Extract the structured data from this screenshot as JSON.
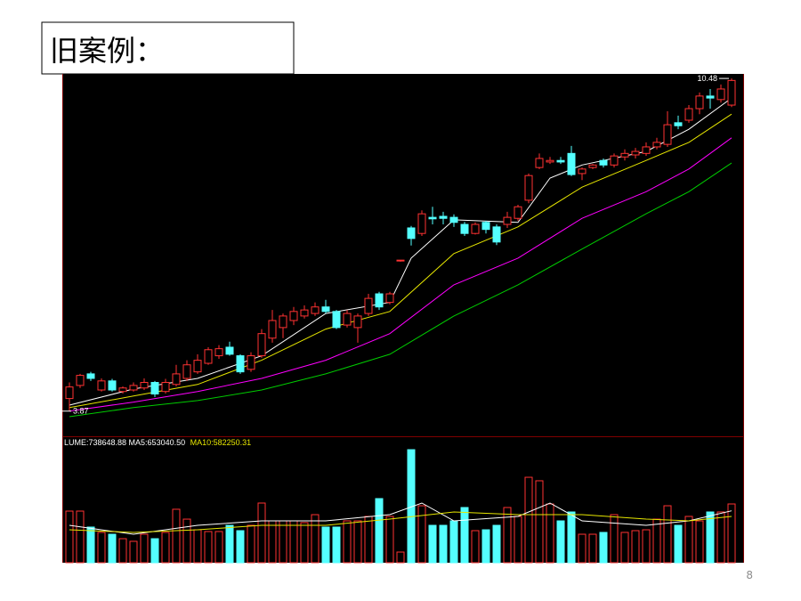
{
  "title": "旧案例：",
  "page_number": "8",
  "chart_data": [
    {
      "type": "candlestick",
      "high_label": "10.48",
      "low_label": "3.87",
      "up_color": "#ff3232",
      "down_color": "#54ffff",
      "ylim": [
        3.37,
        10.57
      ],
      "open": [
        4.12,
        4.38,
        4.61,
        4.29,
        4.47,
        4.26,
        4.29,
        4.33,
        4.44,
        4.26,
        4.4,
        4.52,
        4.65,
        4.82,
        4.97,
        5.14,
        4.97,
        4.7,
        4.97,
        5.32,
        5.53,
        5.67,
        5.76,
        5.81,
        5.94,
        5.85,
        5.58,
        5.53,
        5.81,
        6.2,
        6.03,
        6.86,
        7.51,
        7.4,
        7.72,
        7.74,
        7.72,
        7.58,
        7.4,
        7.62,
        7.53,
        7.58,
        7.7,
        8.06,
        8.71,
        8.82,
        8.85,
        8.99,
        8.59,
        8.71,
        8.85,
        8.76,
        8.92,
        8.96,
        8.99,
        9.12,
        9.17,
        9.6,
        9.65,
        9.88,
        10.13,
        10.06,
        9.95
      ],
      "high": [
        4.44,
        4.61,
        4.65,
        4.52,
        4.51,
        4.36,
        4.44,
        4.52,
        4.47,
        4.51,
        4.79,
        4.88,
        5.0,
        5.14,
        5.18,
        5.25,
        5.0,
        5.04,
        5.5,
        5.88,
        5.81,
        5.94,
        5.97,
        6.03,
        6.08,
        5.88,
        5.88,
        5.81,
        6.2,
        6.24,
        6.24,
        6.87,
        7.55,
        7.86,
        7.93,
        7.83,
        7.78,
        7.63,
        7.62,
        7.65,
        7.58,
        7.83,
        7.97,
        8.59,
        8.99,
        8.92,
        8.92,
        9.14,
        8.71,
        8.78,
        8.89,
        8.99,
        9.07,
        9.1,
        9.21,
        9.3,
        9.83,
        9.74,
        9.95,
        10.2,
        10.27,
        10.36,
        10.48
      ],
      "low": [
        3.87,
        4.33,
        4.47,
        4.26,
        4.26,
        4.22,
        4.26,
        4.29,
        4.15,
        4.22,
        4.36,
        4.47,
        4.61,
        4.79,
        4.91,
        4.97,
        4.61,
        4.65,
        4.93,
        5.23,
        5.32,
        5.58,
        5.71,
        5.76,
        5.81,
        5.5,
        5.53,
        5.23,
        5.76,
        5.88,
        5.99,
        6.84,
        7.16,
        7.35,
        7.58,
        7.58,
        7.53,
        7.35,
        7.38,
        7.4,
        7.17,
        7.51,
        7.65,
        8.0,
        8.68,
        8.78,
        8.78,
        8.54,
        8.46,
        8.68,
        8.71,
        8.71,
        8.85,
        8.89,
        8.94,
        9.07,
        9.12,
        9.47,
        9.6,
        9.77,
        9.88,
        10.0,
        9.91
      ],
      "close": [
        4.35,
        4.58,
        4.52,
        4.47,
        4.29,
        4.33,
        4.38,
        4.44,
        4.21,
        4.44,
        4.61,
        4.79,
        4.88,
        5.09,
        5.11,
        5.0,
        4.65,
        4.97,
        5.41,
        5.67,
        5.76,
        5.85,
        5.88,
        5.94,
        5.85,
        5.53,
        5.81,
        5.76,
        6.11,
        5.94,
        6.2,
        6.87,
        7.3,
        7.79,
        7.69,
        7.7,
        7.62,
        7.4,
        7.58,
        7.48,
        7.23,
        7.72,
        7.93,
        8.55,
        8.89,
        8.85,
        8.82,
        8.57,
        8.68,
        8.76,
        8.76,
        8.94,
        8.99,
        9.03,
        9.12,
        9.21,
        9.56,
        9.54,
        9.88,
        10.13,
        10.09,
        10.27,
        10.44
      ],
      "series": [
        {
          "color": "#ffffff",
          "x": [
            0,
            6,
            12,
            18,
            24,
            30,
            32,
            36,
            42,
            45,
            48,
            54,
            58,
            62
          ],
          "values": [
            3.99,
            4.31,
            4.52,
            4.97,
            5.81,
            6.03,
            6.91,
            7.67,
            7.62,
            8.5,
            8.76,
            9.03,
            9.47,
            10.09
          ]
        },
        {
          "color": "#e6e600",
          "x": [
            0,
            6,
            12,
            18,
            24,
            30,
            36,
            42,
            48,
            54,
            58,
            62
          ],
          "values": [
            3.94,
            4.17,
            4.4,
            4.88,
            5.5,
            5.85,
            7.0,
            7.53,
            8.32,
            8.85,
            9.21,
            9.77
          ]
        },
        {
          "color": "#ff00ff",
          "x": [
            0,
            6,
            12,
            18,
            24,
            30,
            36,
            42,
            48,
            54,
            58,
            62
          ],
          "values": [
            3.87,
            4.05,
            4.26,
            4.52,
            4.88,
            5.41,
            6.38,
            6.91,
            7.7,
            8.23,
            8.68,
            9.3
          ]
        },
        {
          "color": "#00cc00",
          "x": [
            0,
            6,
            12,
            18,
            24,
            30,
            36,
            42,
            48,
            54,
            58,
            62
          ],
          "values": [
            3.76,
            3.94,
            4.08,
            4.29,
            4.61,
            5.0,
            5.76,
            6.38,
            7.09,
            7.79,
            8.23,
            8.8
          ]
        }
      ]
    },
    {
      "type": "bar",
      "legend": [
        {
          "text": "LUME:738648.88 MA5:653040.50",
          "color": "#ffffff"
        },
        {
          "text": "MA10:582250.31",
          "color": "#e6e600"
        }
      ],
      "ylim": [
        0,
        1567000
      ],
      "values": [
        649000,
        649000,
        448000,
        381000,
        358000,
        302000,
        269000,
        358000,
        302000,
        381000,
        672000,
        548000,
        414000,
        392000,
        392000,
        470000,
        403000,
        470000,
        750000,
        526000,
        526000,
        526000,
        504000,
        604000,
        448000,
        448000,
        526000,
        526000,
        582000,
        806000,
        582000,
        134000,
        1421000,
        716000,
        470000,
        470000,
        526000,
        694000,
        403000,
        414000,
        470000,
        694000,
        582000,
        1074000,
        1030000,
        738000,
        526000,
        638000,
        358000,
        358000,
        381000,
        604000,
        381000,
        403000,
        414000,
        548000,
        716000,
        470000,
        582000,
        526000,
        638000,
        638000,
        738648.88
      ],
      "series": [
        {
          "color": "#ffffff",
          "x": [
            0,
            6,
            12,
            18,
            24,
            30,
            33,
            36,
            42,
            45,
            48,
            54,
            58,
            62
          ],
          "values": [
            470000,
            358000,
            470000,
            526000,
            526000,
            604000,
            750000,
            526000,
            582000,
            750000,
            526000,
            470000,
            526000,
            653040.5
          ]
        },
        {
          "color": "#e6e600",
          "x": [
            0,
            6,
            12,
            18,
            24,
            30,
            36,
            42,
            48,
            54,
            58,
            62
          ],
          "values": [
            414000,
            381000,
            414000,
            470000,
            470000,
            548000,
            638000,
            604000,
            604000,
            548000,
            526000,
            582250.31
          ]
        }
      ]
    }
  ]
}
